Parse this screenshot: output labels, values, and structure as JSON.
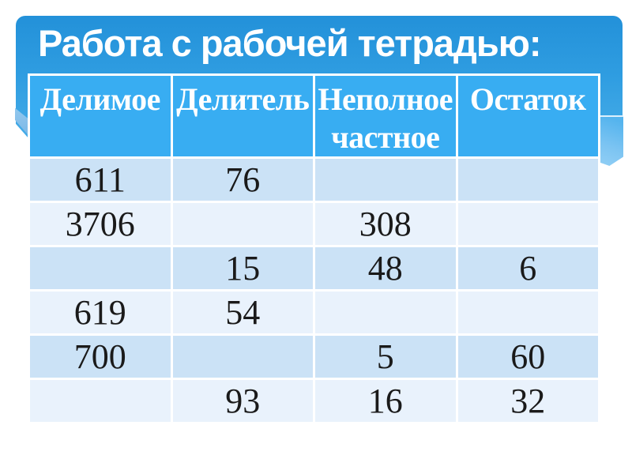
{
  "title": "Работа с рабочей тетрадью:",
  "table": {
    "headers": [
      "Делимое",
      "Делитель",
      "Неполное частное",
      "Остаток"
    ],
    "rows": [
      [
        "611",
        "76",
        "",
        ""
      ],
      [
        "3706",
        "",
        "308",
        ""
      ],
      [
        "",
        "15",
        "48",
        "6"
      ],
      [
        "619",
        "54",
        "",
        ""
      ],
      [
        "700",
        "",
        "5",
        "60"
      ],
      [
        "",
        "93",
        "16",
        "32"
      ]
    ]
  },
  "colors": {
    "page_background": "#ffffff",
    "banner_gradient_top": "#2391d9",
    "banner_gradient_bottom": "#4aafe9",
    "banner_fold": "#84bde8",
    "header_cell_background": "#38adf2",
    "row_odd_background": "#cbe2f6",
    "row_even_background": "#e9f2fc",
    "cell_border": "#ffffff",
    "title_text": "#ffffff",
    "header_text": "#ffffff",
    "cell_text": "#1a1a1a"
  }
}
